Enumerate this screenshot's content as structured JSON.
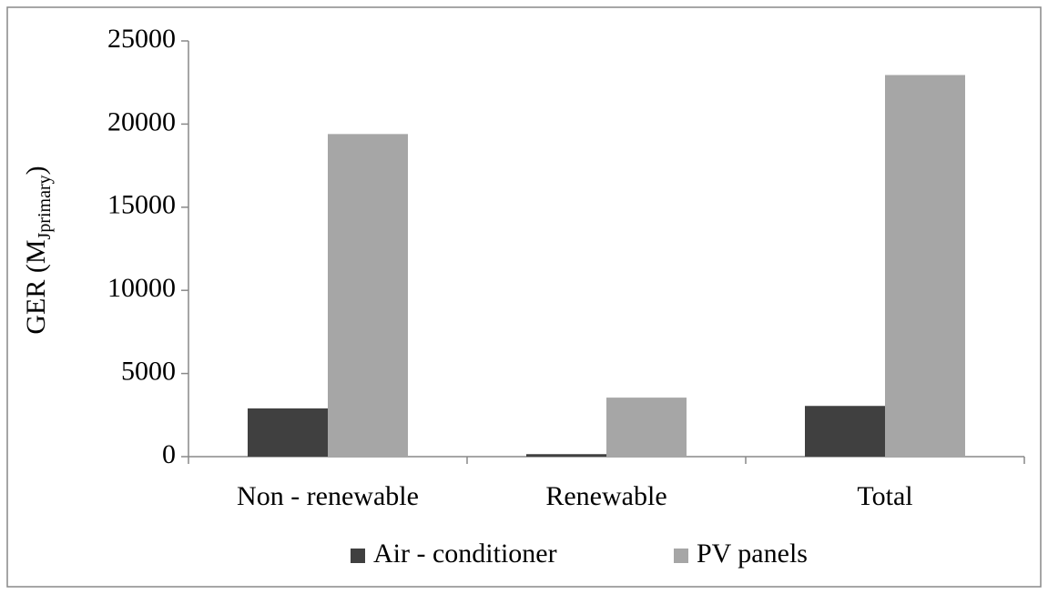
{
  "chart_data": {
    "type": "bar",
    "y_label": {
      "text": "GER (M",
      "subscript": "Jprimary",
      "suffix": ")"
    },
    "categories": [
      "Non - renewable",
      "Renewable",
      "Total"
    ],
    "series": [
      {
        "name": "Air - conditioner",
        "color": "#404040",
        "values": [
          2900,
          150,
          3050
        ]
      },
      {
        "name": "PV panels",
        "color": "#a6a6a6",
        "values": [
          19400,
          3550,
          22950
        ]
      }
    ],
    "ylim": [
      0,
      25000
    ],
    "yticks": [
      0,
      5000,
      10000,
      15000,
      20000,
      25000
    ],
    "legend": "bottom"
  }
}
